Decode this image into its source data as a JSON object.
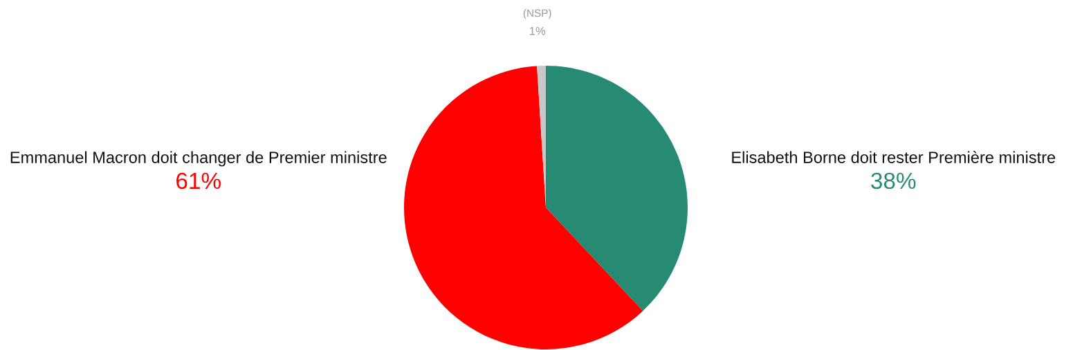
{
  "chart_data": {
    "type": "pie",
    "categories": [
      "Elisabeth Borne doit rester Première ministre",
      "Emmanuel Macron doit changer de Premier ministre",
      "(NSP)"
    ],
    "values": [
      38,
      61,
      1
    ],
    "colors": [
      "#268b72",
      "#ff0000",
      "#c8c8c8"
    ],
    "value_labels": [
      "38%",
      "61%",
      "1%"
    ]
  }
}
